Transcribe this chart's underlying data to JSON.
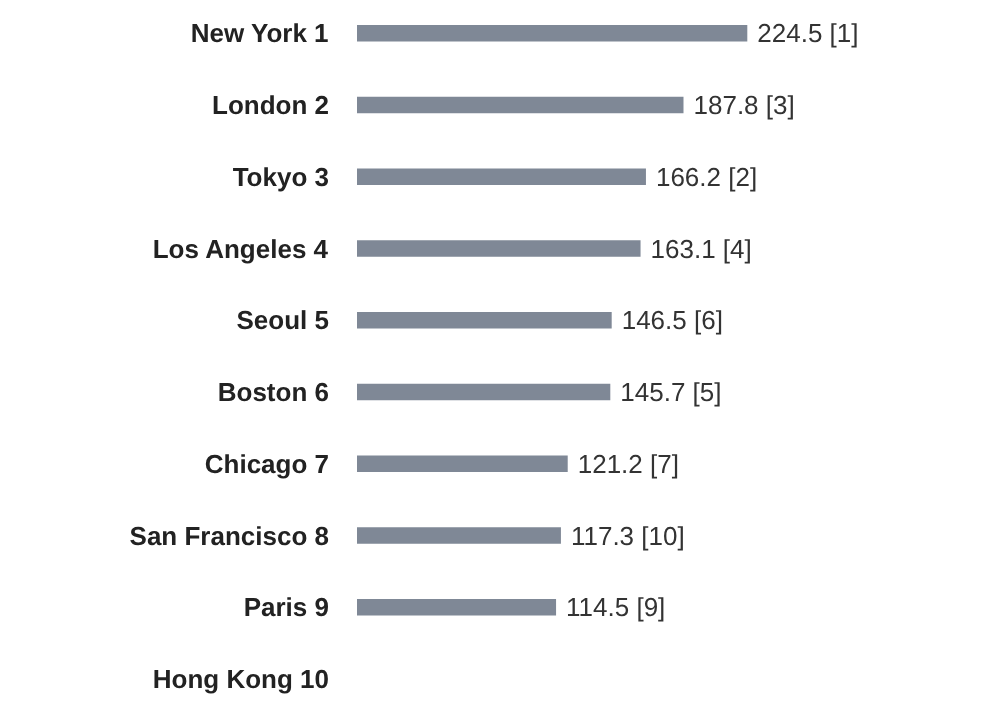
{
  "chart_data": {
    "type": "bar",
    "orientation": "horizontal",
    "categories": [
      "New York 1",
      "London 2",
      "Tokyo 3",
      "Los Angeles 4",
      "Seoul 5",
      "Boston 6",
      "Chicago 7",
      "San Francisco 8",
      "Paris 9",
      "Hong Kong 10"
    ],
    "values": [
      224.5,
      187.8,
      166.2,
      163.1,
      146.5,
      145.7,
      121.2,
      117.3,
      114.5,
      null
    ],
    "value_labels": [
      "224.5 [1]",
      "187.8 [3]",
      "166.2 [2]",
      "163.1 [4]",
      "146.5 [6]",
      "145.7 [5]",
      "121.2 [7]",
      "117.3 [10]",
      "114.5 [9]",
      null
    ],
    "color": "#7f8896",
    "tick_labels": "y",
    "grid": false
  }
}
